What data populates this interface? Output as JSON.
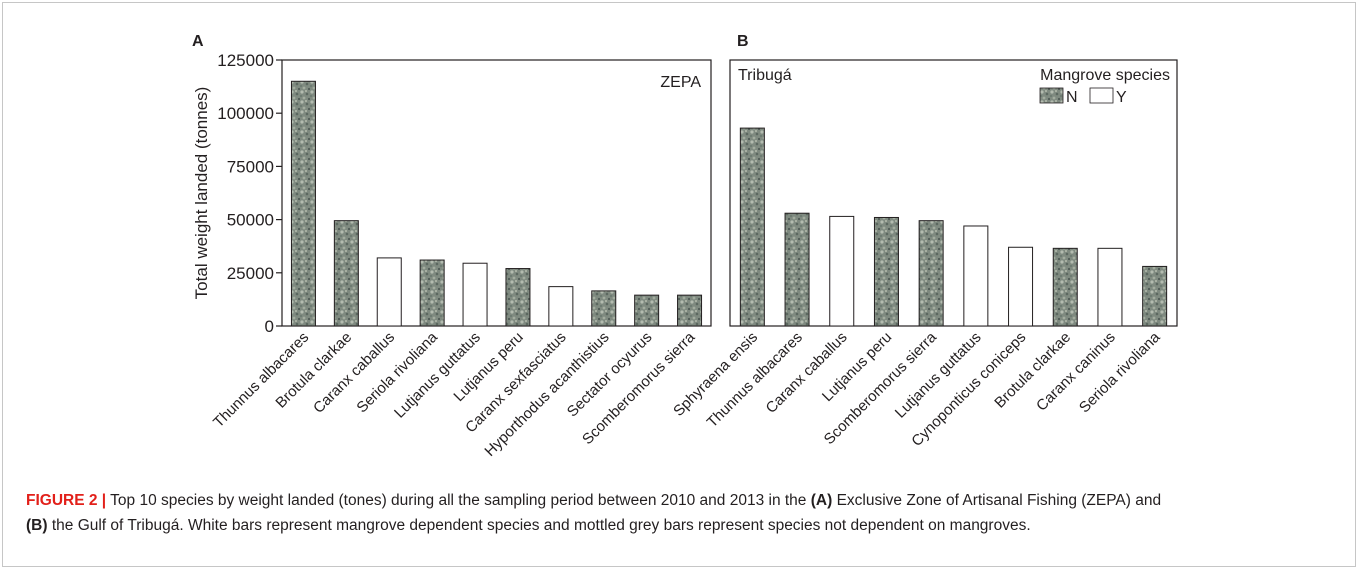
{
  "colors": {
    "mottled_fill": "#7f8a80",
    "white_fill": "#ffffff",
    "axis": "#231f20",
    "caption_accent": "#e2201a"
  },
  "legend": {
    "title": "Mangrove species",
    "entries": [
      {
        "label": "N",
        "dependent": false
      },
      {
        "label": "Y",
        "dependent": true
      }
    ]
  },
  "chart_data": [
    {
      "type": "bar",
      "panel": "A",
      "annotation": "ZEPA",
      "ylabel": "Total weight landed (tonnes)",
      "ylim": [
        0,
        125000
      ],
      "yticks": [
        "0",
        "25000",
        "50000",
        "75000",
        "100000",
        "125000"
      ],
      "categories": [
        "Thunnus albacares",
        "Brotula clarkae",
        "Caranx caballus",
        "Seriola rivoliana",
        "Lutjanus guttatus",
        "Lutjanus peru",
        "Caranx sexfasciatus",
        "Hyporthodus acanthistius",
        "Sectator ocyurus",
        "Scomberomorus sierra"
      ],
      "values": [
        115000,
        49500,
        32000,
        31000,
        29500,
        27000,
        18500,
        16500,
        14500,
        14500
      ],
      "mangrove_dependent": [
        "N",
        "N",
        "Y",
        "N",
        "Y",
        "N",
        "Y",
        "N",
        "N",
        "N"
      ]
    },
    {
      "type": "bar",
      "panel": "B",
      "annotation": "Tribugá",
      "ylim": [
        0,
        125000
      ],
      "categories": [
        "Sphyraena ensis",
        "Thunnus albacares",
        "Caranx caballus",
        "Lutjanus peru",
        "Scomberomorus sierra",
        "Lutjanus guttatus",
        "Cynoponticus coniceps",
        "Brotula clarkae",
        "Caranx caninus",
        "Seriola rivoliana"
      ],
      "values": [
        93000,
        53000,
        51500,
        51000,
        49500,
        47000,
        37000,
        36500,
        36500,
        28000
      ],
      "mangrove_dependent": [
        "N",
        "N",
        "Y",
        "N",
        "N",
        "Y",
        "Y",
        "N",
        "Y",
        "N"
      ]
    }
  ],
  "caption": {
    "label": "FIGURE 2 |",
    "seg1": " Top 10 species by weight landed (tones) during all the sampling period between 2010 and 2013 in the ",
    "bold_a": "(A)",
    "seg2": " Exclusive Zone of Artisanal Fishing (ZEPA) and",
    "bold_b": "(B)",
    "seg3": " the Gulf of Tribugá. White bars represent mangrove dependent species and mottled grey bars represent species not dependent on mangroves."
  }
}
